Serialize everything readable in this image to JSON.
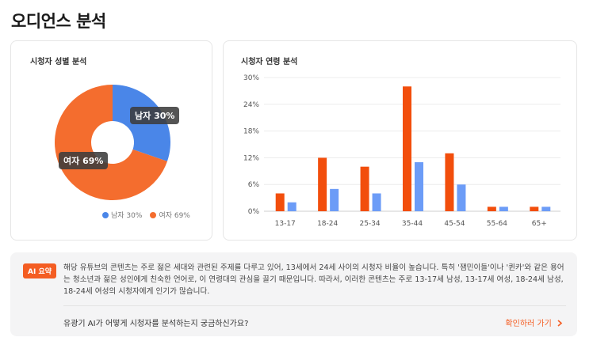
{
  "page": {
    "title": "오디언스 분석"
  },
  "gender": {
    "title": "시청자 성별 분석",
    "slices": [
      {
        "label": "남자 30%",
        "value": 30,
        "color": "#4a86e8"
      },
      {
        "label": "여자 69%",
        "value": 69,
        "color": "#f46d2e"
      }
    ],
    "tooltips": {
      "male": "남자 30%",
      "female": "여자 69%"
    },
    "legend": [
      {
        "label": "남자 30%",
        "color": "#4a86e8"
      },
      {
        "label": "여자 69%",
        "color": "#f46d2e"
      }
    ]
  },
  "age": {
    "title": "시청자 연령 분석"
  },
  "chart_data": {
    "type": "bar",
    "categories": [
      "13-17",
      "18-24",
      "25-34",
      "35-44",
      "45-54",
      "55-64",
      "65+"
    ],
    "series": [
      {
        "values": [
          4,
          12,
          10,
          28,
          13,
          1,
          1
        ],
        "color": "#f24e0c"
      },
      {
        "values": [
          2,
          5,
          4,
          11,
          6,
          1,
          1
        ],
        "color": "#6c9cf7"
      }
    ],
    "yticks": [
      "0%",
      "6%",
      "12%",
      "18%",
      "24%",
      "30%"
    ],
    "ylim": [
      0,
      30
    ],
    "grid": true
  },
  "ai": {
    "badge": "AI 요약",
    "summary": "해당 유튜브의 콘텐츠는 주로 젊은 세대와 관련된 주제를 다루고 있어, 13세에서 24세 사이의 시청자 비율이 높습니다. 특히 '잼민이들'이나 '퀸카'와 같은 용어는 청소년과 젊은 성인에게 친숙한 언어로, 이 연령대의 관심을 끌기 때문입니다. 따라서, 이러한 콘텐츠는 주로 13-17세 남성, 13-17세 여성, 18-24세 남성, 18-24세 여성의 시청자에게 인기가 많습니다.",
    "question": "유광기 AI가 어떻게 시청자를 분석하는지 궁금하신가요?",
    "link_label": "확인하러 가기",
    "link_icon": "chevron-right-icon"
  }
}
